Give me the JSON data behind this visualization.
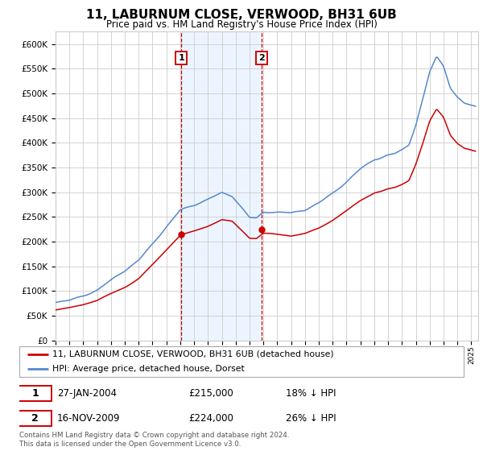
{
  "title": "11, LABURNUM CLOSE, VERWOOD, BH31 6UB",
  "subtitle": "Price paid vs. HM Land Registry's House Price Index (HPI)",
  "hpi_color": "#5588cc",
  "price_color": "#cc0000",
  "marker_color": "#cc0000",
  "sale1_date": "27-JAN-2004",
  "sale1_price": 215000,
  "sale1_label": "1",
  "sale1_year": 2004.07,
  "sale2_date": "16-NOV-2009",
  "sale2_price": 224000,
  "sale2_label": "2",
  "sale2_year": 2009.88,
  "legend_line1": "11, LABURNUM CLOSE, VERWOOD, BH31 6UB (detached house)",
  "legend_line2": "HPI: Average price, detached house, Dorset",
  "footnote": "Contains HM Land Registry data © Crown copyright and database right 2024.\nThis data is licensed under the Open Government Licence v3.0.",
  "ylim": [
    0,
    625000
  ],
  "yticks": [
    0,
    50000,
    100000,
    150000,
    200000,
    250000,
    300000,
    350000,
    400000,
    450000,
    500000,
    550000,
    600000
  ],
  "xlim_start": 1995.0,
  "xlim_end": 2025.5,
  "background_color": "#ffffff",
  "grid_color": "#cccccc",
  "shaded_color": "#ddeeff"
}
